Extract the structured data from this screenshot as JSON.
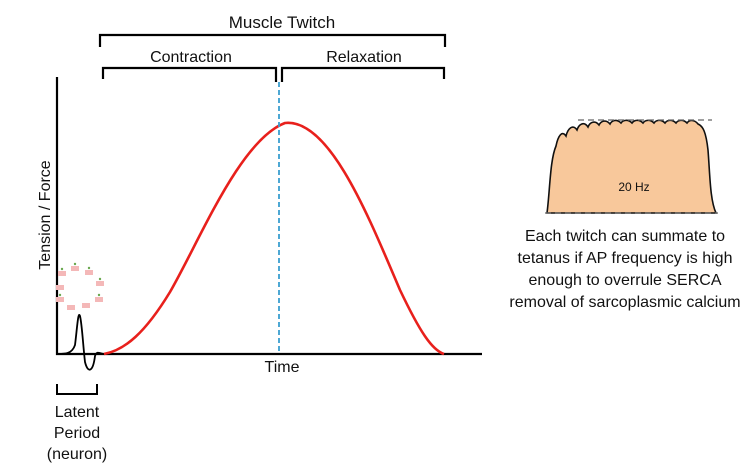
{
  "diagram": {
    "title": "Muscle Twitch",
    "phases": [
      "Contraction",
      "Relaxation"
    ],
    "y_axis_label": "Tension  / Force",
    "x_axis_label": "Time",
    "latent_period": [
      "Latent",
      "Period",
      "(neuron)"
    ],
    "colors": {
      "twitch_curve": "#e8201c",
      "peak_line": "#3a9fd0",
      "tetanus_fill": "#f8c89b",
      "axis": "#000000"
    }
  },
  "inset": {
    "frequency_label": "20 Hz",
    "caption": "Each twitch can summate to tetanus if AP frequency is high enough to overrule SERCA removal of sarcoplasmic calcium"
  }
}
